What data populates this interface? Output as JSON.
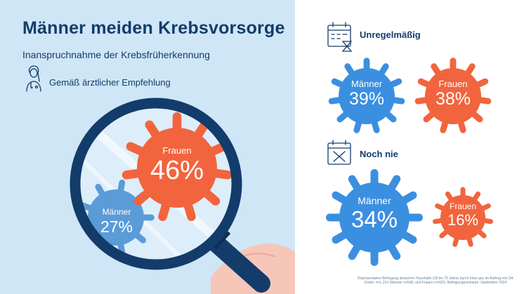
{
  "title": "Männer meiden Krebsvorsorge",
  "subtitle": "Inanspruchnahme der Krebsfrüherkennung",
  "sections": {
    "recommended": "Gemäß ärztlicher  Empfehlung",
    "irregular": "Unregelmäßig",
    "never": "Noch nie"
  },
  "labels": {
    "men": "Männer",
    "women": "Frauen"
  },
  "values_text": {
    "rec_women": "46%",
    "rec_men": "27%",
    "irr_men": "39%",
    "irr_women": "38%",
    "never_men": "34%",
    "never_women": "16%"
  },
  "colors": {
    "men": "#3b8fe0",
    "women": "#f2643d",
    "men_in_lens": "#5a9bd8",
    "navy": "#133c6b",
    "background": "#cfe6f6"
  },
  "icons": [
    "doctor-icon",
    "calendar-hourglass-icon",
    "calendar-x-icon",
    "magnifying-glass-icon",
    "hand-icon"
  ],
  "footnote": "Repräsentative Befragung deutscher Haushalte (18 bis 79 Jahre) durch Infas quo im Auftrag von DA Direkt. n=1.210 (Männer n=590, und Frauen n=620). Befragungszeitraum: September 2024",
  "chart_data": {
    "type": "table",
    "title": "Männer meiden Krebsvorsorge",
    "subtitle": "Inanspruchnahme der Krebsfrüherkennung",
    "categories": [
      "Gemäß ärztlicher  Empfehlung",
      "Unregelmäßig",
      "Noch nie"
    ],
    "series": [
      {
        "name": "Männer",
        "values": [
          27,
          39,
          34
        ]
      },
      {
        "name": "Frauen",
        "values": [
          46,
          38,
          16
        ]
      }
    ],
    "unit": "%"
  }
}
